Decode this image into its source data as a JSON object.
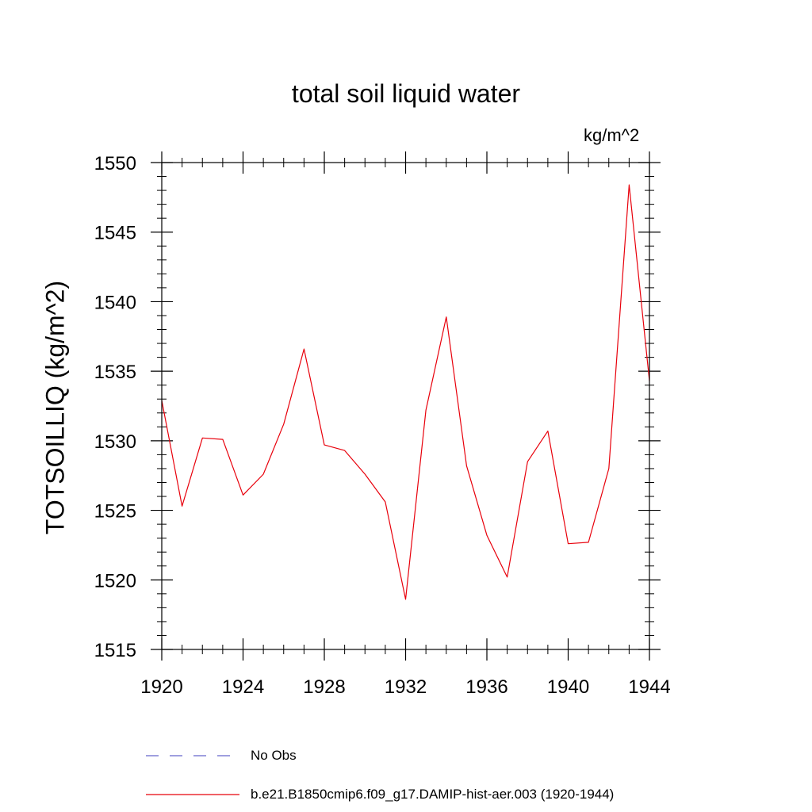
{
  "chart_data": {
    "type": "line",
    "title": "total soil liquid water",
    "units_label": "kg/m^2",
    "ylabel": "TOTSOILLIQ  (kg/m^2)",
    "xlabel": "",
    "xlim": [
      1920,
      1944
    ],
    "ylim": [
      1515,
      1550
    ],
    "x_ticks": [
      1920,
      1924,
      1928,
      1932,
      1936,
      1940,
      1944
    ],
    "y_ticks": [
      1515,
      1520,
      1525,
      1530,
      1535,
      1540,
      1545,
      1550
    ],
    "x_minor_step": 1,
    "y_minor_step": 1,
    "grid": false,
    "legend_position": "bottom",
    "x": [
      1920,
      1921,
      1922,
      1923,
      1924,
      1925,
      1926,
      1927,
      1928,
      1929,
      1930,
      1931,
      1932,
      1933,
      1934,
      1935,
      1936,
      1937,
      1938,
      1939,
      1940,
      1941,
      1942,
      1943,
      1944
    ],
    "series": [
      {
        "name": "b.e21.B1850cmip6.f09_g17.DAMIP-hist-aer.003 (1920-1944)",
        "color": "#e8000b",
        "style": "solid",
        "values": [
          1532.9,
          1525.3,
          1530.2,
          1530.1,
          1526.1,
          1527.6,
          1531.2,
          1536.6,
          1529.7,
          1529.3,
          1527.6,
          1525.6,
          1518.6,
          1532.2,
          1538.9,
          1528.2,
          1523.2,
          1520.2,
          1528.5,
          1530.7,
          1522.6,
          1522.7,
          1528.0,
          1548.4,
          1534.3
        ]
      }
    ],
    "legend": [
      {
        "label": "No Obs",
        "color": "#6666cc",
        "style": "dashed"
      },
      {
        "label": "b.e21.B1850cmip6.f09_g17.DAMIP-hist-aer.003 (1920-1944)",
        "color": "#e8000b",
        "style": "solid"
      }
    ]
  }
}
